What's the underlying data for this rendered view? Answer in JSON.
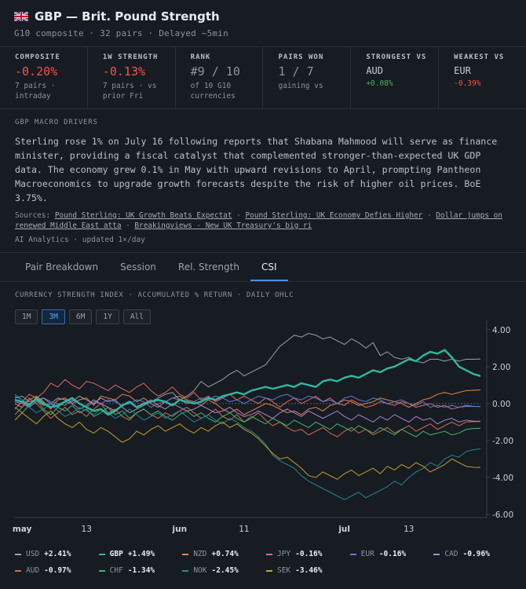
{
  "header": {
    "title": "GBP — Brit. Pound Strength",
    "subtitle": "G10 composite · 32 pairs · Delayed ~5min"
  },
  "stats": [
    {
      "label": "COMPOSITE",
      "value": "-0.20%",
      "tone": "neg",
      "note": "7 pairs ·\nintraday"
    },
    {
      "label": "1W STRENGTH",
      "value": "-0.13%",
      "tone": "neg",
      "note": "7 pairs · vs\nprior Fri"
    },
    {
      "label": "RANK",
      "value": "#9 / 10",
      "tone": "muted",
      "note": "of 10 G10\ncurrencies"
    },
    {
      "label": "PAIRS WON",
      "value": "1 / 7",
      "tone": "muted",
      "note": "gaining vs"
    },
    {
      "label": "STRONGEST VS",
      "value": "AUD",
      "tone": "small",
      "note": "+0.08%",
      "note_tone": "pos"
    },
    {
      "label": "WEAKEST VS",
      "value": "EUR",
      "tone": "small",
      "note": "-0.39%",
      "note_tone": "neg"
    }
  ],
  "drivers": {
    "label": "GBP MACRO DRIVERS",
    "text": "Sterling rose 1% on July 16 following reports that Shabana Mahmood will serve as finance minister, providing a fiscal catalyst that complemented stronger-than-expected UK GDP data. The economy grew 0.1% in May with upward revisions to April, prompting Pantheon Macroeconomics to upgrade growth forecasts despite the risk of higher oil prices. BoE 3.75%.",
    "sources_label": "Sources:",
    "sources": [
      "Pound Sterling: UK Growth Beats Expectat",
      "Pound Sterling: UK Economy Defies Higher",
      "Dollar jumps on renewed Middle East atta",
      "Breakingviews - New UK Treasury's big ri"
    ],
    "meta": "AI Analytics · updated 1×/day"
  },
  "tabs": [
    {
      "label": "Pair Breakdown",
      "active": false
    },
    {
      "label": "Session",
      "active": false
    },
    {
      "label": "Rel. Strength",
      "active": false
    },
    {
      "label": "CSI",
      "active": true
    }
  ],
  "ranges": [
    {
      "label": "1M",
      "active": false
    },
    {
      "label": "3M",
      "active": true
    },
    {
      "label": "6M",
      "active": false
    },
    {
      "label": "1Y",
      "active": false
    },
    {
      "label": "All",
      "active": false
    }
  ],
  "chart_data": {
    "type": "line",
    "title": "CURRENCY STRENGTH INDEX · ACCUMULATED % RETURN · DAILY OHLC",
    "x": [
      0,
      1,
      2,
      3,
      4,
      5,
      6,
      7,
      8,
      9,
      10,
      11,
      12,
      13,
      14,
      15,
      16,
      17,
      18,
      19,
      20,
      21,
      22,
      23,
      24,
      25,
      26,
      27,
      28,
      29,
      30,
      31,
      32,
      33,
      34,
      35,
      36,
      37,
      38,
      39,
      40,
      41,
      42,
      43,
      44,
      45,
      46,
      47,
      48,
      49,
      50,
      51,
      52,
      53,
      54,
      55,
      56,
      57,
      58,
      59,
      60,
      61,
      62,
      63,
      64,
      65
    ],
    "xticks": [
      {
        "label": "may",
        "x": 1,
        "bold": true
      },
      {
        "label": "13",
        "x": 10,
        "bold": false
      },
      {
        "label": "jun",
        "x": 23,
        "bold": true
      },
      {
        "label": "11",
        "x": 32,
        "bold": false
      },
      {
        "label": "jul",
        "x": 46,
        "bold": true
      },
      {
        "label": "13",
        "x": 55,
        "bold": false
      }
    ],
    "yticks": [
      "4.00",
      "2.00",
      "0.00",
      "-2.00",
      "-4.00",
      "-6.00"
    ],
    "ylim": [
      -6,
      4.5
    ],
    "grid": false,
    "series": [
      {
        "name": "USD",
        "color": "#9ba3ad",
        "width": 1.1,
        "final": "+2.41%",
        "values": [
          0.3,
          0.4,
          0.1,
          0.2,
          -0.1,
          0.0,
          0.3,
          0.2,
          0.1,
          0.4,
          0.2,
          0.0,
          0.3,
          0.1,
          0.2,
          -0.2,
          -0.5,
          -0.3,
          -0.1,
          0.1,
          0.3,
          0.5,
          0.6,
          0.2,
          0.4,
          0.7,
          1.2,
          0.9,
          1.1,
          1.3,
          1.6,
          1.8,
          1.5,
          1.7,
          1.9,
          2.1,
          2.6,
          3.1,
          3.4,
          3.7,
          3.6,
          3.8,
          3.7,
          3.5,
          3.6,
          3.4,
          3.2,
          3.5,
          3.3,
          3.0,
          3.3,
          2.6,
          2.8,
          2.5,
          2.4,
          2.5,
          2.3,
          2.2,
          2.4,
          2.4,
          2.3,
          2.4,
          2.3,
          2.4,
          2.4,
          2.41
        ]
      },
      {
        "name": "GBP",
        "color": "#2fb8a0",
        "width": 2.4,
        "final": "+1.49%",
        "values": [
          0.2,
          0.1,
          -0.1,
          0.3,
          0.0,
          -0.2,
          -0.1,
          0.1,
          0.3,
          0.0,
          -0.2,
          -0.4,
          -0.3,
          -0.6,
          -0.4,
          -0.1,
          0.1,
          -0.2,
          0.0,
          0.1,
          0.2,
          0.1,
          -0.1,
          0.2,
          0.1,
          0.0,
          0.1,
          0.3,
          0.2,
          0.4,
          0.5,
          0.6,
          0.5,
          0.7,
          0.8,
          0.9,
          0.8,
          0.9,
          1.0,
          0.9,
          1.1,
          1.0,
          0.9,
          1.2,
          1.3,
          1.2,
          1.4,
          1.5,
          1.4,
          1.6,
          1.8,
          1.7,
          1.9,
          2.0,
          2.2,
          2.4,
          2.3,
          2.6,
          2.8,
          2.7,
          2.9,
          2.5,
          2.0,
          1.8,
          1.6,
          1.49
        ]
      },
      {
        "name": "NZD",
        "color": "#e7874a",
        "width": 1.1,
        "final": "+0.74%",
        "values": [
          0.0,
          -0.2,
          0.2,
          0.4,
          0.1,
          -0.3,
          0.2,
          0.3,
          0.0,
          0.2,
          0.3,
          -0.1,
          0.4,
          0.3,
          0.2,
          0.5,
          0.4,
          0.1,
          0.3,
          0.0,
          -0.2,
          0.1,
          0.3,
          0.4,
          0.2,
          0.1,
          -0.1,
          0.2,
          0.0,
          -0.3,
          -0.5,
          -0.3,
          -0.6,
          -0.4,
          -0.2,
          0.0,
          -0.1,
          -0.3,
          -0.5,
          -0.4,
          -0.6,
          -0.3,
          -0.2,
          -0.4,
          -0.1,
          0.0,
          0.2,
          0.1,
          -0.1,
          0.0,
          0.1,
          0.3,
          0.2,
          0.1,
          0.0,
          -0.2,
          0.0,
          0.2,
          0.3,
          0.5,
          0.6,
          0.5,
          0.6,
          0.7,
          0.72,
          0.74
        ]
      },
      {
        "name": "JPY",
        "color": "#e26b6b",
        "width": 1.1,
        "final": "-0.16%",
        "values": [
          -0.3,
          0.1,
          0.5,
          0.3,
          0.6,
          1.1,
          0.9,
          1.3,
          1.0,
          0.8,
          1.2,
          1.1,
          0.9,
          0.7,
          1.0,
          0.8,
          0.6,
          0.9,
          1.1,
          0.7,
          0.4,
          0.6,
          0.9,
          0.5,
          0.3,
          0.6,
          0.2,
          0.4,
          0.1,
          0.3,
          0.5,
          0.2,
          0.4,
          0.2,
          0.0,
          0.3,
          0.1,
          -0.2,
          0.1,
          0.3,
          0.0,
          0.2,
          0.4,
          0.1,
          0.3,
          0.0,
          -0.1,
          0.2,
          0.0,
          -0.2,
          -0.1,
          0.1,
          0.0,
          -0.1,
          0.1,
          0.0,
          -0.2,
          -0.1,
          0.0,
          -0.2,
          -0.1,
          -0.3,
          -0.2,
          -0.1,
          -0.15,
          -0.16
        ]
      },
      {
        "name": "EUR",
        "color": "#5c80d6",
        "width": 1.1,
        "final": "-0.16%",
        "values": [
          0.4,
          0.2,
          0.0,
          0.2,
          0.3,
          0.1,
          0.0,
          -0.1,
          0.2,
          0.0,
          -0.2,
          0.1,
          0.0,
          0.2,
          0.1,
          -0.1,
          0.0,
          0.2,
          0.1,
          -0.2,
          0.0,
          0.1,
          0.3,
          0.2,
          0.0,
          0.1,
          0.3,
          0.2,
          0.4,
          0.3,
          0.1,
          0.2,
          0.0,
          0.2,
          0.4,
          0.3,
          0.2,
          0.4,
          0.5,
          0.3,
          0.2,
          0.4,
          0.3,
          0.1,
          0.2,
          0.0,
          0.3,
          0.4,
          0.2,
          0.1,
          0.3,
          0.2,
          0.0,
          0.1,
          0.2,
          0.0,
          -0.1,
          0.1,
          -0.2,
          -0.1,
          -0.2,
          -0.1,
          -0.2,
          -0.15,
          -0.16,
          -0.16
        ]
      },
      {
        "name": "CAD",
        "color": "#a58ad6",
        "width": 1.1,
        "final": "-0.96%",
        "values": [
          0.1,
          0.0,
          -0.2,
          0.1,
          0.3,
          0.0,
          -0.2,
          0.1,
          0.0,
          -0.3,
          -0.1,
          0.2,
          0.0,
          -0.2,
          -0.4,
          -0.1,
          0.1,
          -0.2,
          0.0,
          0.2,
          -0.1,
          -0.3,
          0.0,
          -0.2,
          -0.4,
          -0.3,
          -0.1,
          -0.3,
          -0.5,
          -0.4,
          -0.2,
          -0.5,
          -0.7,
          -0.6,
          -0.4,
          -0.6,
          -0.8,
          -0.5,
          -0.3,
          -0.5,
          -0.7,
          -0.4,
          -0.6,
          -0.8,
          -0.6,
          -0.4,
          -0.7,
          -0.9,
          -0.6,
          -0.8,
          -1.0,
          -0.7,
          -0.9,
          -0.6,
          -0.8,
          -1.0,
          -0.7,
          -0.9,
          -0.8,
          -1.1,
          -0.9,
          -0.8,
          -1.0,
          -0.9,
          -0.95,
          -0.96
        ]
      },
      {
        "name": "AUD",
        "color": "#d0704f",
        "width": 1.1,
        "final": "-0.97%",
        "values": [
          -0.6,
          -0.2,
          0.3,
          0.0,
          -0.4,
          -0.8,
          -0.5,
          -0.2,
          -0.6,
          -0.4,
          -0.7,
          -0.3,
          0.0,
          -0.5,
          -0.3,
          -0.7,
          -0.9,
          -0.5,
          -0.3,
          -0.6,
          -0.8,
          -0.5,
          -0.7,
          -0.4,
          -0.2,
          -0.5,
          -0.8,
          -0.6,
          -0.3,
          -0.7,
          -0.9,
          -0.6,
          -1.0,
          -0.8,
          -0.5,
          -0.9,
          -1.2,
          -1.0,
          -1.3,
          -1.5,
          -1.4,
          -1.7,
          -1.5,
          -1.3,
          -1.6,
          -1.8,
          -1.5,
          -1.3,
          -1.6,
          -1.4,
          -1.7,
          -1.5,
          -1.3,
          -1.6,
          -1.4,
          -1.2,
          -1.5,
          -1.3,
          -1.1,
          -1.4,
          -1.2,
          -1.0,
          -1.2,
          -1.0,
          -0.98,
          -0.97
        ]
      },
      {
        "name": "CHF",
        "color": "#3fb96d",
        "width": 1.1,
        "final": "-1.34%",
        "values": [
          -0.2,
          -0.5,
          -0.1,
          0.2,
          -0.3,
          -0.6,
          -0.2,
          -0.4,
          -0.1,
          -0.5,
          -0.3,
          -0.7,
          -0.5,
          -0.2,
          -0.6,
          -0.4,
          -0.8,
          -0.5,
          -0.3,
          -0.6,
          -0.4,
          -0.7,
          -0.9,
          -0.6,
          -0.4,
          -0.7,
          -0.5,
          -0.8,
          -1.0,
          -0.7,
          -0.5,
          -0.8,
          -1.0,
          -0.7,
          -0.9,
          -1.1,
          -0.8,
          -1.0,
          -1.2,
          -0.9,
          -1.1,
          -1.3,
          -1.0,
          -1.2,
          -1.4,
          -1.1,
          -1.3,
          -1.5,
          -1.2,
          -1.4,
          -1.6,
          -1.3,
          -1.5,
          -1.7,
          -1.4,
          -1.6,
          -1.8,
          -1.5,
          -1.7,
          -1.6,
          -1.5,
          -1.7,
          -1.6,
          -1.4,
          -1.35,
          -1.34
        ]
      },
      {
        "name": "NOK",
        "color": "#1f8c96",
        "width": 1.1,
        "final": "-2.45%",
        "values": [
          0.5,
          0.2,
          -0.2,
          -0.5,
          -0.3,
          0.0,
          -0.4,
          -0.7,
          -0.5,
          -0.2,
          -0.4,
          -0.6,
          -0.3,
          -0.5,
          -0.8,
          -0.6,
          -0.3,
          -0.6,
          -0.9,
          -0.7,
          -0.5,
          -0.8,
          -0.6,
          -0.4,
          -0.7,
          -1.0,
          -0.8,
          -0.6,
          -0.9,
          -1.1,
          -0.8,
          -1.0,
          -1.3,
          -1.5,
          -1.8,
          -2.2,
          -2.8,
          -3.1,
          -3.3,
          -3.5,
          -3.9,
          -4.2,
          -4.4,
          -4.6,
          -4.8,
          -5.0,
          -5.2,
          -5.0,
          -4.8,
          -5.1,
          -4.9,
          -4.7,
          -4.5,
          -4.2,
          -4.4,
          -4.0,
          -3.7,
          -3.5,
          -3.2,
          -3.4,
          -3.0,
          -2.8,
          -2.9,
          -2.6,
          -2.5,
          -2.45
        ]
      },
      {
        "name": "SEK",
        "color": "#c9a227",
        "width": 1.1,
        "final": "-3.46%",
        "values": [
          -0.9,
          -0.5,
          -0.8,
          -1.1,
          -0.7,
          -0.4,
          -0.8,
          -1.1,
          -1.3,
          -1.0,
          -1.4,
          -1.6,
          -1.3,
          -1.5,
          -1.8,
          -2.1,
          -1.9,
          -1.5,
          -1.7,
          -1.4,
          -1.2,
          -1.5,
          -1.3,
          -1.1,
          -1.4,
          -1.6,
          -1.3,
          -1.5,
          -1.2,
          -1.0,
          -1.3,
          -1.1,
          -1.4,
          -1.6,
          -1.9,
          -2.3,
          -2.7,
          -3.0,
          -2.9,
          -3.2,
          -3.5,
          -3.9,
          -4.0,
          -3.7,
          -3.9,
          -4.1,
          -3.8,
          -3.6,
          -3.9,
          -3.7,
          -3.5,
          -3.8,
          -3.4,
          -3.6,
          -3.3,
          -3.5,
          -3.2,
          -3.4,
          -3.7,
          -3.5,
          -3.3,
          -3.0,
          -3.2,
          -3.4,
          -3.45,
          -3.46
        ]
      }
    ]
  }
}
